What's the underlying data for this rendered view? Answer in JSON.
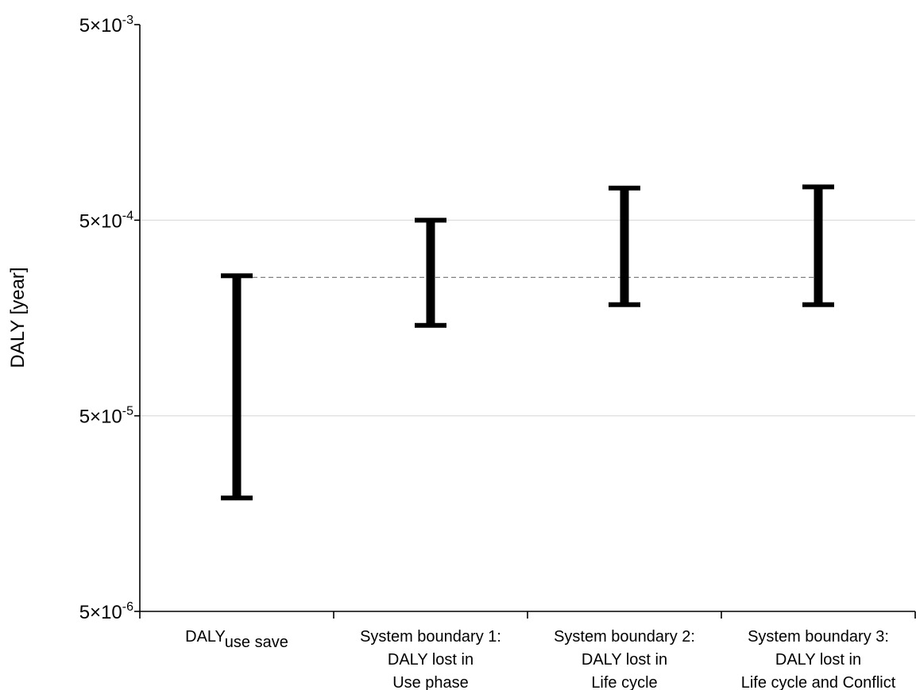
{
  "chart_data": {
    "type": "range",
    "ylabel": "DALY [year]",
    "yscale": "log",
    "ylim": [
      5e-06,
      0.005
    ],
    "grid": "horizontal",
    "yticks": [
      {
        "value": 0.005,
        "mantissa": "5",
        "base": "×10",
        "exp": "-3"
      },
      {
        "value": 0.0005,
        "mantissa": "5",
        "base": "×10",
        "exp": "-4"
      },
      {
        "value": 5e-05,
        "mantissa": "5",
        "base": "×10",
        "exp": "-5"
      },
      {
        "value": 5e-06,
        "mantissa": "5",
        "base": "×10",
        "exp": "-6"
      }
    ],
    "categories": [
      {
        "lines": [
          "DALY"
        ],
        "subscript": "use save"
      },
      {
        "lines": [
          "System boundary 1:",
          "DALY lost in",
          "Use phase"
        ]
      },
      {
        "lines": [
          "System boundary 2:",
          "DALY lost in",
          "Life cycle"
        ]
      },
      {
        "lines": [
          "System boundary 3:",
          "DALY lost in",
          "Life cycle and Conflict"
        ]
      }
    ],
    "ranges": [
      {
        "low": 1.9e-05,
        "high": 0.00026
      },
      {
        "low": 0.000145,
        "high": 0.0005
      },
      {
        "low": 0.000185,
        "high": 0.00073
      },
      {
        "low": 0.000185,
        "high": 0.00074
      }
    ],
    "reference_line": {
      "value": 0.000255,
      "style": "dashed"
    }
  }
}
